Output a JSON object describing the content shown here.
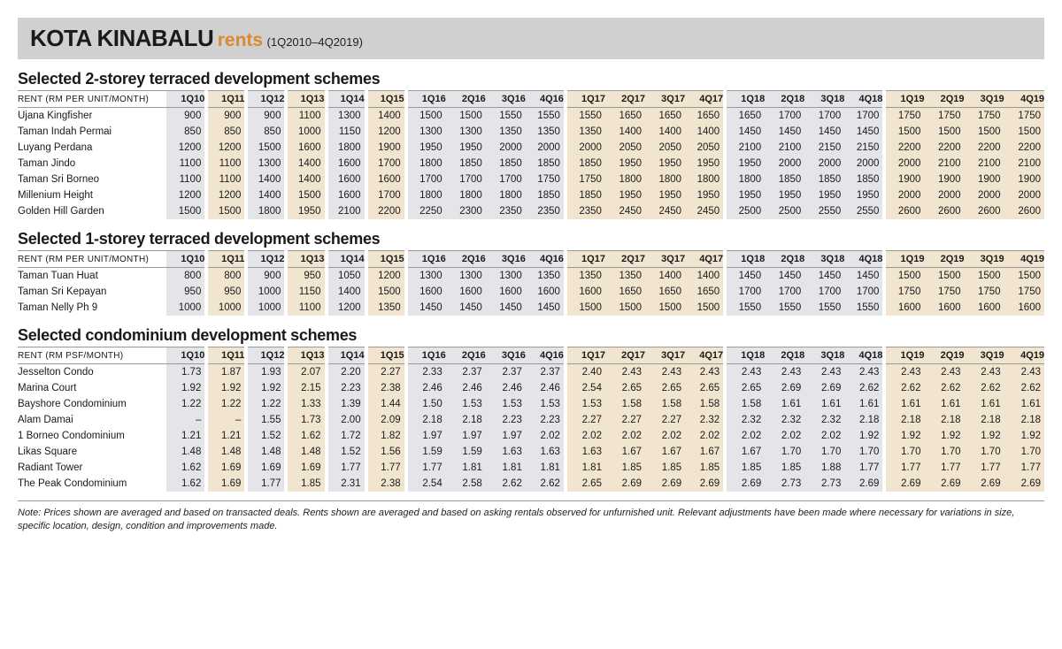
{
  "heading": {
    "title": "KOTA KINABALU",
    "subtitle": "rents",
    "range": "(1Q2010–4Q2019)",
    "title_color": "#1a1a1a",
    "subtitle_color": "#d98b2e"
  },
  "periods": [
    "1Q10",
    "1Q11",
    "1Q12",
    "1Q13",
    "1Q14",
    "1Q15",
    "1Q16",
    "2Q16",
    "3Q16",
    "4Q16",
    "1Q17",
    "2Q17",
    "3Q17",
    "4Q17",
    "1Q18",
    "2Q18",
    "3Q18",
    "4Q18",
    "1Q19",
    "2Q19",
    "3Q19",
    "4Q19"
  ],
  "band_colors": {
    "a": "#f2e5cf",
    "b": "#e3e5e9",
    "white": "#ffffff"
  },
  "group_boundaries": [
    0,
    1,
    2,
    3,
    4,
    5,
    6,
    10,
    14,
    18,
    22
  ],
  "sections": [
    {
      "title": "Selected 2-storey terraced development schemes",
      "unit_label": "RENT (RM PER UNIT/MONTH)",
      "rows": [
        {
          "name": "Ujana Kingfisher",
          "v": [
            "900",
            "900",
            "900",
            "1100",
            "1300",
            "1400",
            "1500",
            "1500",
            "1550",
            "1550",
            "1550",
            "1650",
            "1650",
            "1650",
            "1650",
            "1700",
            "1700",
            "1700",
            "1750",
            "1750",
            "1750",
            "1750"
          ]
        },
        {
          "name": "Taman Indah Permai",
          "v": [
            "850",
            "850",
            "850",
            "1000",
            "1150",
            "1200",
            "1300",
            "1300",
            "1350",
            "1350",
            "1350",
            "1400",
            "1400",
            "1400",
            "1450",
            "1450",
            "1450",
            "1450",
            "1500",
            "1500",
            "1500",
            "1500"
          ]
        },
        {
          "name": "Luyang Perdana",
          "v": [
            "1200",
            "1200",
            "1500",
            "1600",
            "1800",
            "1900",
            "1950",
            "1950",
            "2000",
            "2000",
            "2000",
            "2050",
            "2050",
            "2050",
            "2100",
            "2100",
            "2150",
            "2150",
            "2200",
            "2200",
            "2200",
            "2200"
          ]
        },
        {
          "name": "Taman Jindo",
          "v": [
            "1100",
            "1100",
            "1300",
            "1400",
            "1600",
            "1700",
            "1800",
            "1850",
            "1850",
            "1850",
            "1850",
            "1950",
            "1950",
            "1950",
            "1950",
            "2000",
            "2000",
            "2000",
            "2000",
            "2100",
            "2100",
            "2100"
          ]
        },
        {
          "name": "Taman Sri Borneo",
          "v": [
            "1100",
            "1100",
            "1400",
            "1400",
            "1600",
            "1600",
            "1700",
            "1700",
            "1700",
            "1750",
            "1750",
            "1800",
            "1800",
            "1800",
            "1800",
            "1850",
            "1850",
            "1850",
            "1900",
            "1900",
            "1900",
            "1900"
          ]
        },
        {
          "name": "Millenium Height",
          "v": [
            "1200",
            "1200",
            "1400",
            "1500",
            "1600",
            "1700",
            "1800",
            "1800",
            "1800",
            "1850",
            "1850",
            "1950",
            "1950",
            "1950",
            "1950",
            "1950",
            "1950",
            "1950",
            "2000",
            "2000",
            "2000",
            "2000"
          ]
        },
        {
          "name": "Golden Hill Garden",
          "v": [
            "1500",
            "1500",
            "1800",
            "1950",
            "2100",
            "2200",
            "2250",
            "2300",
            "2350",
            "2350",
            "2350",
            "2450",
            "2450",
            "2450",
            "2500",
            "2500",
            "2550",
            "2550",
            "2600",
            "2600",
            "2600",
            "2600"
          ]
        }
      ]
    },
    {
      "title": "Selected 1-storey terraced development schemes",
      "unit_label": "RENT (RM PER UNIT/MONTH)",
      "rows": [
        {
          "name": "Taman Tuan Huat",
          "v": [
            "800",
            "800",
            "900",
            "950",
            "1050",
            "1200",
            "1300",
            "1300",
            "1300",
            "1350",
            "1350",
            "1350",
            "1400",
            "1400",
            "1450",
            "1450",
            "1450",
            "1450",
            "1500",
            "1500",
            "1500",
            "1500"
          ]
        },
        {
          "name": "Taman Sri Kepayan",
          "v": [
            "950",
            "950",
            "1000",
            "1150",
            "1400",
            "1500",
            "1600",
            "1600",
            "1600",
            "1600",
            "1600",
            "1650",
            "1650",
            "1650",
            "1700",
            "1700",
            "1700",
            "1700",
            "1750",
            "1750",
            "1750",
            "1750"
          ]
        },
        {
          "name": "Taman Nelly Ph 9",
          "v": [
            "1000",
            "1000",
            "1000",
            "1100",
            "1200",
            "1350",
            "1450",
            "1450",
            "1450",
            "1450",
            "1500",
            "1500",
            "1500",
            "1500",
            "1550",
            "1550",
            "1550",
            "1550",
            "1600",
            "1600",
            "1600",
            "1600"
          ]
        }
      ]
    },
    {
      "title": "Selected condominium development schemes",
      "unit_label": "RENT (RM PSF/MONTH)",
      "rows": [
        {
          "name": "Jesselton Condo",
          "v": [
            "1.73",
            "1.87",
            "1.93",
            "2.07",
            "2.20",
            "2.27",
            "2.33",
            "2.37",
            "2.37",
            "2.37",
            "2.40",
            "2.43",
            "2.43",
            "2.43",
            "2.43",
            "2.43",
            "2.43",
            "2.43",
            "2.43",
            "2.43",
            "2.43",
            "2.43"
          ]
        },
        {
          "name": "Marina Court",
          "v": [
            "1.92",
            "1.92",
            "1.92",
            "2.15",
            "2.23",
            "2.38",
            "2.46",
            "2.46",
            "2.46",
            "2.46",
            "2.54",
            "2.65",
            "2.65",
            "2.65",
            "2.65",
            "2.69",
            "2.69",
            "2.62",
            "2.62",
            "2.62",
            "2.62",
            "2.62"
          ]
        },
        {
          "name": "Bayshore Condominium",
          "v": [
            "1.22",
            "1.22",
            "1.22",
            "1.33",
            "1.39",
            "1.44",
            "1.50",
            "1.53",
            "1.53",
            "1.53",
            "1.53",
            "1.58",
            "1.58",
            "1.58",
            "1.58",
            "1.61",
            "1.61",
            "1.61",
            "1.61",
            "1.61",
            "1.61",
            "1.61"
          ]
        },
        {
          "name": "Alam Damai",
          "v": [
            "–",
            "–",
            "1.55",
            "1.73",
            "2.00",
            "2.09",
            "2.18",
            "2.18",
            "2.23",
            "2.23",
            "2.27",
            "2.27",
            "2.27",
            "2.32",
            "2.32",
            "2.32",
            "2.32",
            "2.18",
            "2.18",
            "2.18",
            "2.18",
            "2.18"
          ]
        },
        {
          "name": "1 Borneo Condominium",
          "v": [
            "1.21",
            "1.21",
            "1.52",
            "1.62",
            "1.72",
            "1.82",
            "1.97",
            "1.97",
            "1.97",
            "2.02",
            "2.02",
            "2.02",
            "2.02",
            "2.02",
            "2.02",
            "2.02",
            "2.02",
            "1.92",
            "1.92",
            "1.92",
            "1.92",
            "1.92"
          ]
        },
        {
          "name": "Likas Square",
          "v": [
            "1.48",
            "1.48",
            "1.48",
            "1.48",
            "1.52",
            "1.56",
            "1.59",
            "1.59",
            "1.63",
            "1.63",
            "1.63",
            "1.67",
            "1.67",
            "1.67",
            "1.67",
            "1.70",
            "1.70",
            "1.70",
            "1.70",
            "1.70",
            "1.70",
            "1.70"
          ]
        },
        {
          "name": "Radiant Tower",
          "v": [
            "1.62",
            "1.69",
            "1.69",
            "1.69",
            "1.77",
            "1.77",
            "1.77",
            "1.81",
            "1.81",
            "1.81",
            "1.81",
            "1.85",
            "1.85",
            "1.85",
            "1.85",
            "1.85",
            "1.88",
            "1.77",
            "1.77",
            "1.77",
            "1.77",
            "1.77"
          ]
        },
        {
          "name": "The Peak Condominium",
          "v": [
            "1.62",
            "1.69",
            "1.77",
            "1.85",
            "2.31",
            "2.38",
            "2.54",
            "2.58",
            "2.62",
            "2.62",
            "2.65",
            "2.69",
            "2.69",
            "2.69",
            "2.69",
            "2.73",
            "2.73",
            "2.69",
            "2.69",
            "2.69",
            "2.69",
            "2.69"
          ]
        }
      ]
    }
  ],
  "footnote": "Note: Prices shown are averaged and based on transacted deals. Rents shown are averaged and based on asking rentals observed for unfurnished unit. Relevant adjustments have been made where necessary for variations in size, specific location, design, condition and improvements made."
}
